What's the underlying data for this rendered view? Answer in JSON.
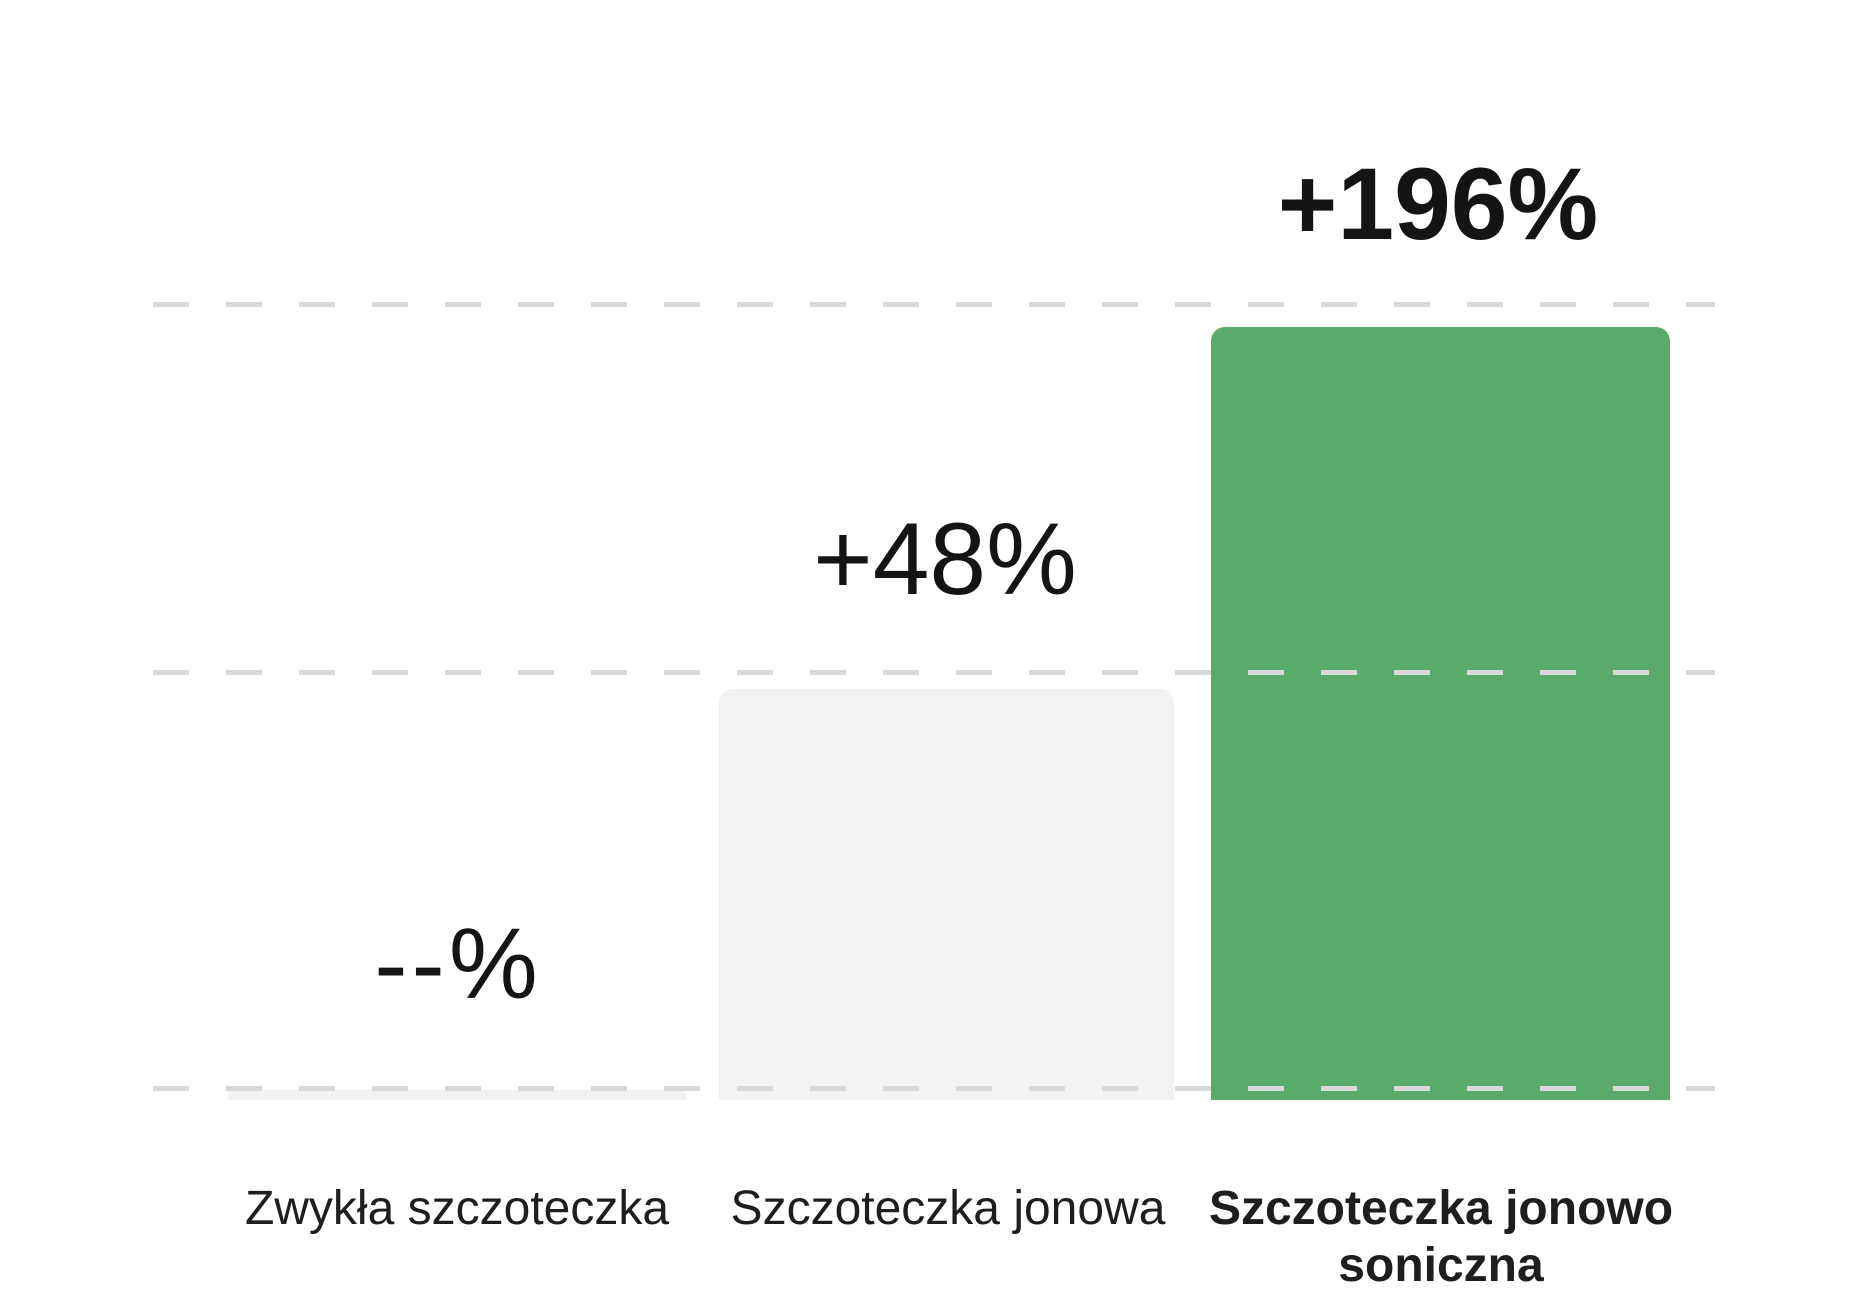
{
  "chart_data": {
    "type": "bar",
    "title": "",
    "xlabel": "",
    "ylabel": "",
    "categories": [
      "Zwykła szczoteczka",
      "Szczoteczka jonowa",
      "Szczoteczka jonowo soniczna"
    ],
    "values": [
      null,
      48,
      196
    ],
    "value_labels": [
      "--%",
      "+48%",
      "+196%"
    ],
    "unit": "%",
    "ylim": [
      0,
      230
    ],
    "grid": "horizontal dashed lines at baseline, mid and top levels",
    "legend": "none",
    "emphasized_category": "Szczoteczka jonowo soniczna",
    "bar_colors": [
      "#f2f2f2",
      "#f2f2f2",
      "#5aab69"
    ]
  },
  "colors": {
    "background": "#ffffff",
    "accent_green": "#5aab69",
    "neutral_bar_gray": "#f2f2f2",
    "gridline_gray": "#d9d9d9",
    "text_dark": "#1e1e1e"
  }
}
